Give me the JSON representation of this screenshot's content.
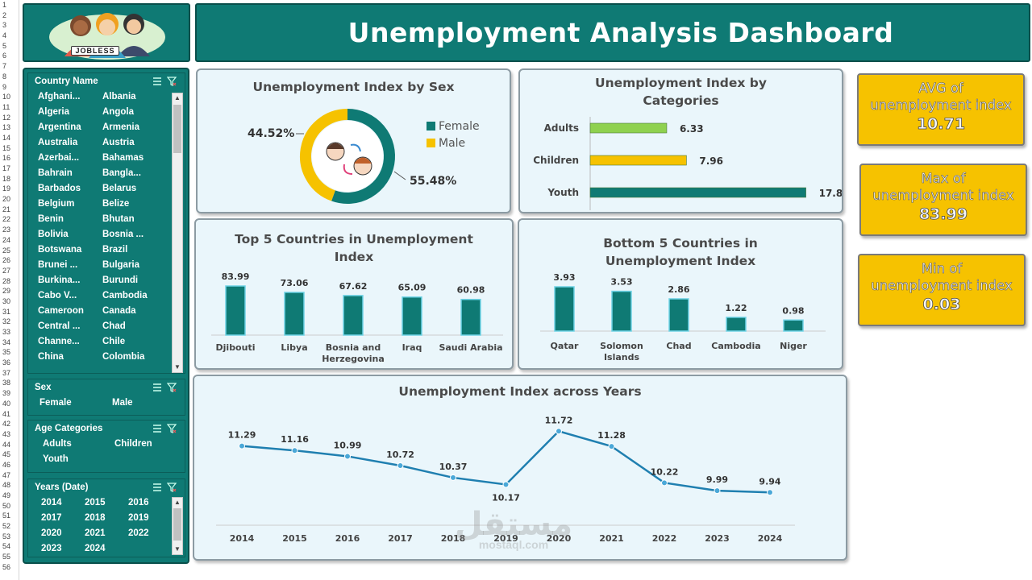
{
  "dashboard": {
    "title": "Unemployment Analysis Dashboard",
    "logo_text": "JOBLESS"
  },
  "gutter_rows": [
    "1",
    "2",
    "3",
    "4",
    "5",
    "6",
    "7",
    "8",
    "9",
    "10",
    "11",
    "12",
    "13",
    "14",
    "15",
    "16",
    "17",
    "18",
    "19",
    "20",
    "21",
    "22",
    "23",
    "24",
    "25",
    "26",
    "27",
    "28",
    "29",
    "30",
    "31",
    "32",
    "33",
    "34",
    "35",
    "36",
    "37",
    "38",
    "39",
    "40",
    "41",
    "42",
    "43",
    "44",
    "45",
    "46",
    "47",
    "48",
    "49",
    "50",
    "51",
    "52",
    "53",
    "54",
    "55",
    "56"
  ],
  "slicers": {
    "country": {
      "title": "Country Name",
      "items": [
        "Afghani...",
        "Albania",
        "Algeria",
        "Angola",
        "Argentina",
        "Armenia",
        "Australia",
        "Austria",
        "Azerbai...",
        "Bahamas",
        "Bahrain",
        "Bangla...",
        "Barbados",
        "Belarus",
        "Belgium",
        "Belize",
        "Benin",
        "Bhutan",
        "Bolivia",
        "Bosnia ...",
        "Botswana",
        "Brazil",
        "Brunei ...",
        "Bulgaria",
        "Burkina...",
        "Burundi",
        "Cabo V...",
        "Cambodia",
        "Cameroon",
        "Canada",
        "Central ...",
        "Chad",
        "Channe...",
        "Chile",
        "China",
        "Colombia"
      ]
    },
    "sex": {
      "title": "Sex",
      "items": [
        "Female",
        "Male"
      ]
    },
    "age": {
      "title": "Age Categories",
      "items": [
        "Adults",
        "Children",
        "Youth"
      ]
    },
    "years": {
      "title": "Years (Date)",
      "items": [
        "2014",
        "2015",
        "2016",
        "2017",
        "2018",
        "2019",
        "2020",
        "2021",
        "2022",
        "2023",
        "2024"
      ]
    }
  },
  "kpis": [
    {
      "label1": "AVG of",
      "label2": "unemployment index",
      "value": "10.71"
    },
    {
      "label1": "Max of",
      "label2": "unemployment index",
      "value": "83.99"
    },
    {
      "label1": "Min of",
      "label2": "unemployment index",
      "value": "0.03"
    }
  ],
  "colors": {
    "teal": "#0f7a74",
    "yellow": "#f6c200",
    "green": "#8fd14f",
    "line": "#1f7fb0"
  },
  "chart_data": [
    {
      "type": "pie",
      "title": "Unemployment Index by Sex",
      "labels": [
        "Female",
        "Male"
      ],
      "values": [
        55.48,
        44.52
      ],
      "value_labels": [
        "55.48%",
        "44.52%"
      ],
      "legend": "right"
    },
    {
      "type": "bar",
      "orientation": "horizontal",
      "title": "Unemployment Index by Categories",
      "categories": [
        "Adults",
        "Children",
        "Youth"
      ],
      "values": [
        6.33,
        7.96,
        17.84
      ],
      "value_labels": [
        "6.33",
        "7.96",
        "17.84"
      ]
    },
    {
      "type": "bar",
      "title": "Top 5 Countries in Unemployment Index",
      "categories": [
        "Djibouti",
        "Libya",
        "Bosnia and Herzegovina",
        "Iraq",
        "Saudi Arabia"
      ],
      "values": [
        83.99,
        73.06,
        67.62,
        65.09,
        60.98
      ]
    },
    {
      "type": "bar",
      "title": "Bottom 5 Countries in Unemployment Index",
      "categories": [
        "Qatar",
        "Solomon Islands",
        "Chad",
        "Cambodia",
        "Niger"
      ],
      "values": [
        3.93,
        3.53,
        2.86,
        1.22,
        0.98
      ]
    },
    {
      "type": "line",
      "title": "Unemployment Index across Years",
      "x": [
        "2014",
        "2015",
        "2016",
        "2017",
        "2018",
        "2019",
        "2020",
        "2021",
        "2022",
        "2023",
        "2024"
      ],
      "values": [
        11.29,
        11.16,
        10.99,
        10.72,
        10.37,
        10.17,
        11.72,
        11.28,
        10.22,
        9.99,
        9.94
      ]
    }
  ],
  "watermark": {
    "line1": "مستقل",
    "line2": "mostaql.com"
  }
}
